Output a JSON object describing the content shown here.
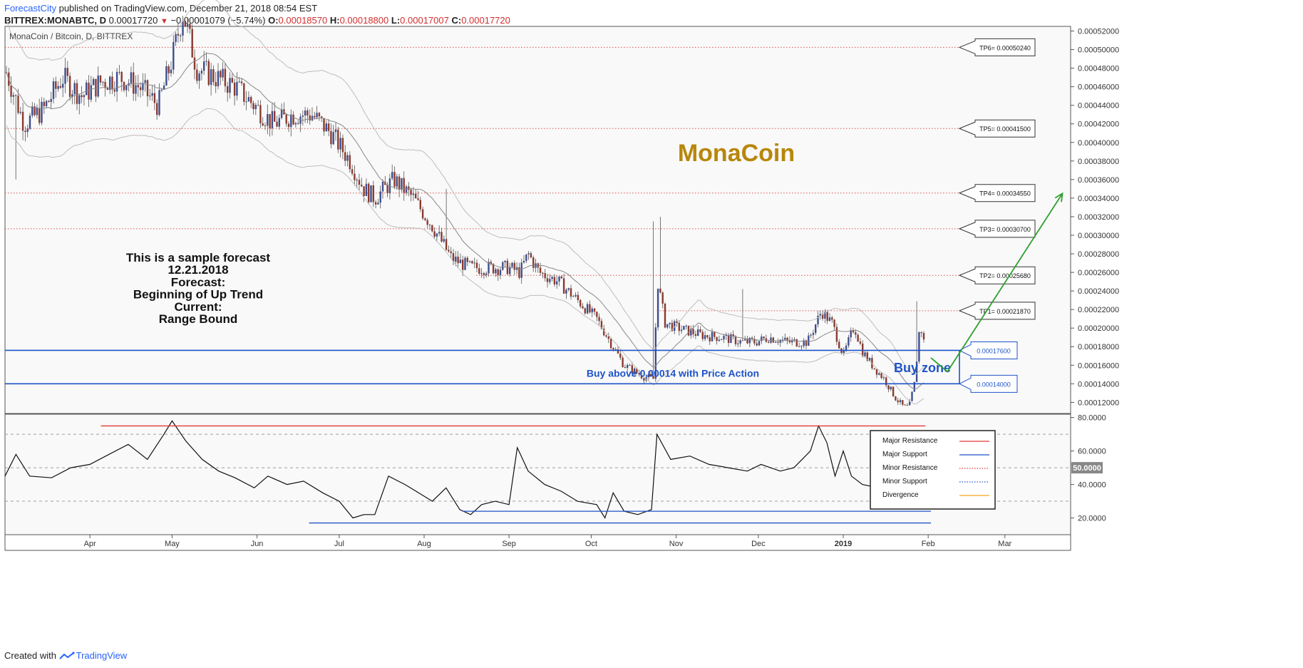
{
  "header": {
    "author": "ForecastCity",
    "published": "published on TradingView.com, December 21, 2018 08:54 EST",
    "symbol": "BITTREX:MONABTC, D",
    "last": "0.00017720",
    "change": "−0.00001079 (−5.74%)",
    "o_label": "O:",
    "o": "0.00018570",
    "h_label": "H:",
    "h": "0.00018800",
    "l_label": "L:",
    "l": "0.00017007",
    "c_label": "C:",
    "c": "0.00017720"
  },
  "footer": {
    "created_with": "Created with",
    "brand": "TradingView"
  },
  "chart_data": {
    "type": "candlestick",
    "title": "MonaCoin / Bitcoin, D, BITTREX",
    "watermark": "MonaCoin",
    "price_axis": {
      "ylim": [
        0.000108,
        0.000525
      ],
      "ticks": [
        "0.00052000",
        "0.00050000",
        "0.00048000",
        "0.00046000",
        "0.00044000",
        "0.00042000",
        "0.00040000",
        "0.00038000",
        "0.00036000",
        "0.00034000",
        "0.00032000",
        "0.00030000",
        "0.00028000",
        "0.00026000",
        "0.00024000",
        "0.00022000",
        "0.00020000",
        "0.00018000",
        "0.00016000",
        "0.00014000",
        "0.00012000"
      ]
    },
    "x_axis": {
      "ticks": [
        {
          "label": "Apr",
          "date": "2018-04-01"
        },
        {
          "label": "May",
          "date": "2018-05-01"
        },
        {
          "label": "Jun",
          "date": "2018-06-01"
        },
        {
          "label": "Jul",
          "date": "2018-07-01"
        },
        {
          "label": "Aug",
          "date": "2018-08-01"
        },
        {
          "label": "Sep",
          "date": "2018-09-01"
        },
        {
          "label": "Oct",
          "date": "2018-10-01"
        },
        {
          "label": "Nov",
          "date": "2018-11-01"
        },
        {
          "label": "Dec",
          "date": "2018-12-01"
        },
        {
          "label": "2019",
          "date": "2019-01-01"
        },
        {
          "label": "Feb",
          "date": "2019-02-01"
        },
        {
          "label": "Mar",
          "date": "2019-03-01"
        }
      ]
    },
    "price_path": [
      [
        "2018-03-01",
        0.00048
      ],
      [
        "2018-03-08",
        0.00042
      ],
      [
        "2018-03-15",
        0.000435
      ],
      [
        "2018-03-22",
        0.00047
      ],
      [
        "2018-03-29",
        0.00045
      ],
      [
        "2018-04-05",
        0.000465
      ],
      [
        "2018-04-12",
        0.00047
      ],
      [
        "2018-04-19",
        0.00046
      ],
      [
        "2018-04-26",
        0.00044
      ],
      [
        "2018-05-01",
        0.00049
      ],
      [
        "2018-05-05",
        0.00054
      ],
      [
        "2018-05-10",
        0.00048
      ],
      [
        "2018-05-17",
        0.00047
      ],
      [
        "2018-05-24",
        0.00046
      ],
      [
        "2018-05-31",
        0.00044
      ],
      [
        "2018-06-07",
        0.00042
      ],
      [
        "2018-06-14",
        0.00043
      ],
      [
        "2018-06-21",
        0.00043
      ],
      [
        "2018-06-28",
        0.00041
      ],
      [
        "2018-07-05",
        0.00038
      ],
      [
        "2018-07-10",
        0.00035
      ],
      [
        "2018-07-14",
        0.00034
      ],
      [
        "2018-07-21",
        0.00036
      ],
      [
        "2018-07-28",
        0.00034
      ],
      [
        "2018-08-04",
        0.00031
      ],
      [
        "2018-08-11",
        0.000275
      ],
      [
        "2018-08-18",
        0.000265
      ],
      [
        "2018-08-25",
        0.000265
      ],
      [
        "2018-09-01",
        0.000265
      ],
      [
        "2018-09-05",
        0.00026
      ],
      [
        "2018-09-08",
        0.00028
      ],
      [
        "2018-09-12",
        0.00026
      ],
      [
        "2018-09-19",
        0.00025
      ],
      [
        "2018-09-26",
        0.00023
      ],
      [
        "2018-10-03",
        0.00021
      ],
      [
        "2018-10-08",
        0.000185
      ],
      [
        "2018-10-13",
        0.00016
      ],
      [
        "2018-10-20",
        0.000148
      ],
      [
        "2018-10-24",
        0.000145
      ],
      [
        "2018-10-25",
        0.000255
      ],
      [
        "2018-10-28",
        0.000205
      ],
      [
        "2018-11-04",
        0.000198
      ],
      [
        "2018-11-11",
        0.000192
      ],
      [
        "2018-11-18",
        0.00019
      ],
      [
        "2018-11-25",
        0.000185
      ],
      [
        "2018-11-30",
        0.000185
      ],
      [
        "2018-12-05",
        0.00019
      ],
      [
        "2018-12-12",
        0.000185
      ],
      [
        "2018-12-19",
        0.000185
      ],
      [
        "2018-12-24",
        0.000218
      ],
      [
        "2018-12-28",
        0.000205
      ],
      [
        "2019-01-01",
        0.00017
      ],
      [
        "2019-01-05",
        0.000202
      ],
      [
        "2019-01-08",
        0.000175
      ],
      [
        "2019-01-12",
        0.000158
      ],
      [
        "2019-01-16",
        0.000145
      ],
      [
        "2019-01-20",
        0.000125
      ],
      [
        "2019-01-23",
        0.000115
      ],
      [
        "2019-01-25",
        0.000115
      ],
      [
        "2019-01-27",
        0.00014
      ],
      [
        "2019-01-29",
        0.000205
      ],
      [
        "2019-01-31",
        0.000177
      ]
    ],
    "tp_levels": [
      {
        "label": "TP6= 0.00050240",
        "value": 0.0005024,
        "line_from": "2018-03-01"
      },
      {
        "label": "TP5= 0.00041500",
        "value": 0.000415,
        "line_from": "2018-03-01"
      },
      {
        "label": "TP4= 0.00034550",
        "value": 0.0003455,
        "line_from": "2018-03-01"
      },
      {
        "label": "TP3= 0.00030700",
        "value": 0.000307,
        "line_from": "2018-03-01"
      },
      {
        "label": "TP2= 0.00025680",
        "value": 0.0002568,
        "line_from": "2018-08-20"
      },
      {
        "label": "TP1= 0.00021870",
        "value": 0.0002187,
        "line_from": "2018-10-25"
      }
    ],
    "buy_zone": {
      "label": "Buy zone",
      "upper": {
        "label": "0.00017600",
        "value": 0.000176
      },
      "lower": {
        "label": "0.00014000",
        "value": 0.00014
      },
      "note": "Buy above 0.00014 with Price Action"
    },
    "forecast_arrow": {
      "points": [
        [
          "2019-02-02",
          0.000168
        ],
        [
          "2019-02-08",
          0.000153
        ],
        [
          "2019-03-22",
          0.000345
        ]
      ]
    },
    "annotation_lines": [
      "This is a sample forecast",
      "12.21.2018",
      "Forecast:",
      "Beginning of Up Trend",
      "Current:",
      "Range Bound"
    ],
    "rsi": {
      "ylim": [
        10,
        82
      ],
      "ticks": [
        "80.0000",
        "60.0000",
        "40.0000",
        "20.0000"
      ],
      "current_label": "50.0000",
      "bands": [
        70,
        50,
        30
      ],
      "path": [
        [
          "2018-03-01",
          45
        ],
        [
          "2018-03-05",
          58
        ],
        [
          "2018-03-10",
          45
        ],
        [
          "2018-03-18",
          44
        ],
        [
          "2018-03-25",
          50
        ],
        [
          "2018-04-01",
          52
        ],
        [
          "2018-04-08",
          58
        ],
        [
          "2018-04-15",
          64
        ],
        [
          "2018-04-22",
          55
        ],
        [
          "2018-04-28",
          70
        ],
        [
          "2018-05-01",
          78
        ],
        [
          "2018-05-06",
          66
        ],
        [
          "2018-05-12",
          55
        ],
        [
          "2018-05-18",
          48
        ],
        [
          "2018-05-24",
          44
        ],
        [
          "2018-05-31",
          38
        ],
        [
          "2018-06-05",
          45
        ],
        [
          "2018-06-12",
          40
        ],
        [
          "2018-06-18",
          42
        ],
        [
          "2018-06-25",
          35
        ],
        [
          "2018-07-01",
          30
        ],
        [
          "2018-07-06",
          20
        ],
        [
          "2018-07-10",
          22
        ],
        [
          "2018-07-14",
          22
        ],
        [
          "2018-07-19",
          45
        ],
        [
          "2018-07-25",
          40
        ],
        [
          "2018-07-30",
          35
        ],
        [
          "2018-08-04",
          30
        ],
        [
          "2018-08-09",
          38
        ],
        [
          "2018-08-14",
          25
        ],
        [
          "2018-08-18",
          22
        ],
        [
          "2018-08-22",
          28
        ],
        [
          "2018-08-27",
          30
        ],
        [
          "2018-09-01",
          28
        ],
        [
          "2018-09-04",
          62
        ],
        [
          "2018-09-08",
          48
        ],
        [
          "2018-09-14",
          40
        ],
        [
          "2018-09-20",
          36
        ],
        [
          "2018-09-26",
          30
        ],
        [
          "2018-10-03",
          28
        ],
        [
          "2018-10-06",
          20
        ],
        [
          "2018-10-09",
          35
        ],
        [
          "2018-10-13",
          24
        ],
        [
          "2018-10-18",
          22
        ],
        [
          "2018-10-23",
          25
        ],
        [
          "2018-10-25",
          70
        ],
        [
          "2018-10-30",
          55
        ],
        [
          "2018-11-06",
          57
        ],
        [
          "2018-11-13",
          52
        ],
        [
          "2018-11-20",
          50
        ],
        [
          "2018-11-27",
          48
        ],
        [
          "2018-12-02",
          52
        ],
        [
          "2018-12-09",
          48
        ],
        [
          "2018-12-14",
          50
        ],
        [
          "2018-12-20",
          60
        ],
        [
          "2018-12-23",
          75
        ],
        [
          "2018-12-26",
          65
        ],
        [
          "2018-12-29",
          45
        ],
        [
          "2019-01-01",
          60
        ],
        [
          "2019-01-04",
          45
        ],
        [
          "2019-01-08",
          40
        ],
        [
          "2019-01-14",
          38
        ],
        [
          "2019-01-20",
          30
        ],
        [
          "2019-01-25",
          26
        ],
        [
          "2019-01-27",
          35
        ],
        [
          "2019-01-29",
          65
        ],
        [
          "2019-01-31",
          55
        ]
      ],
      "major_resistance": {
        "from": "2018-04-05",
        "to": "2019-01-31",
        "value": 75
      },
      "major_support_1": {
        "from": "2018-06-20",
        "to": "2019-02-02",
        "value": 17
      },
      "major_support_2": {
        "from": "2018-08-15",
        "to": "2019-02-02",
        "value": 24
      }
    },
    "legend": [
      {
        "label": "Major Resistance",
        "color": "#e53935",
        "style": "solid"
      },
      {
        "label": "Major Support",
        "color": "#1e53c8",
        "style": "solid"
      },
      {
        "label": "Minor Resistance",
        "color": "#e53935",
        "style": "dotted"
      },
      {
        "label": "Minor Support",
        "color": "#1e53c8",
        "style": "dotted"
      },
      {
        "label": "Divergence",
        "color": "#f5a623",
        "style": "solid"
      }
    ],
    "colors": {
      "up": "#3d4f8f",
      "down": "#8b3a2e",
      "tp": "#e05050",
      "zone": "#1e53c8",
      "arrow": "#2ea02e",
      "watermark": "#b8860b",
      "bb": "#bdbdbd",
      "ma": "#888888"
    }
  }
}
